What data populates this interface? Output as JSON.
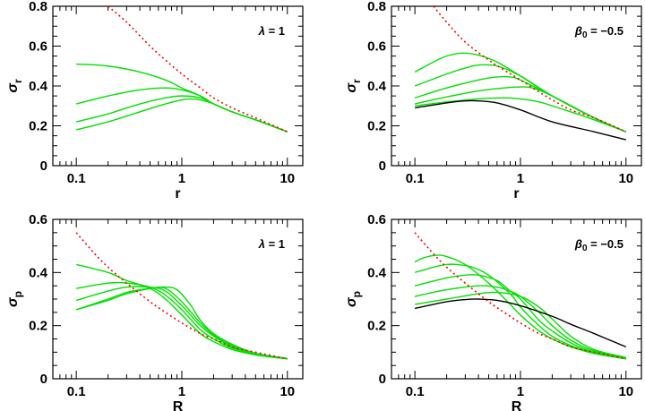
{
  "colors": {
    "green": "#00e000",
    "black": "#000000",
    "red": "#ff0000"
  },
  "chart_data": [
    {
      "type": "line",
      "xscale": "log",
      "xlim": [
        0.06,
        14
      ],
      "ylim": [
        0,
        0.8
      ],
      "xticks": [
        0.1,
        1,
        10
      ],
      "xtick_labels": [
        "0.1",
        "1",
        "10"
      ],
      "yticks": [
        0,
        0.2,
        0.4,
        0.6,
        0.8
      ],
      "ytick_labels": [
        "0",
        "0.2",
        "0.4",
        "0.6",
        "0.8"
      ],
      "xlabel": "r",
      "ylabel_sym": "σ",
      "ylabel_sub": "r",
      "annotation": {
        "sym": "λ",
        "text": " = 1"
      },
      "series": [
        {
          "color": "green",
          "style": "solid",
          "x": [
            0.1,
            0.2,
            0.4,
            0.7,
            1,
            1.5,
            2,
            3,
            5,
            10
          ],
          "y": [
            0.51,
            0.5,
            0.47,
            0.43,
            0.39,
            0.35,
            0.31,
            0.27,
            0.23,
            0.17
          ]
        },
        {
          "color": "green",
          "style": "solid",
          "x": [
            0.1,
            0.2,
            0.4,
            0.7,
            1,
            1.5,
            2,
            3,
            5,
            10
          ],
          "y": [
            0.31,
            0.35,
            0.38,
            0.39,
            0.38,
            0.35,
            0.31,
            0.27,
            0.23,
            0.17
          ]
        },
        {
          "color": "green",
          "style": "solid",
          "x": [
            0.1,
            0.2,
            0.4,
            0.7,
            1,
            1.5,
            2,
            3,
            5,
            10
          ],
          "y": [
            0.22,
            0.26,
            0.31,
            0.34,
            0.35,
            0.34,
            0.31,
            0.27,
            0.23,
            0.17
          ]
        },
        {
          "color": "green",
          "style": "solid",
          "x": [
            0.1,
            0.2,
            0.4,
            0.7,
            1,
            1.2,
            1.5,
            2,
            3,
            5,
            10
          ],
          "y": [
            0.18,
            0.22,
            0.27,
            0.31,
            0.33,
            0.335,
            0.33,
            0.31,
            0.27,
            0.23,
            0.17
          ]
        },
        {
          "color": "red",
          "style": "dotted",
          "x": [
            0.2,
            0.3,
            0.5,
            0.7,
            1,
            1.5,
            2,
            3,
            5,
            10
          ],
          "y": [
            0.8,
            0.72,
            0.6,
            0.53,
            0.46,
            0.39,
            0.34,
            0.29,
            0.24,
            0.17
          ]
        }
      ]
    },
    {
      "type": "line",
      "xscale": "log",
      "xlim": [
        0.06,
        14
      ],
      "ylim": [
        0,
        0.8
      ],
      "xticks": [
        0.1,
        1,
        10
      ],
      "xtick_labels": [
        "0.1",
        "1",
        "10"
      ],
      "yticks": [
        0,
        0.2,
        0.4,
        0.6,
        0.8
      ],
      "ytick_labels": [
        "0",
        "0.2",
        "0.4",
        "0.6",
        "0.8"
      ],
      "xlabel": "r",
      "ylabel_sym": "σ",
      "ylabel_sub": "r",
      "annotation": {
        "sym": "β",
        "sub": "0",
        "text": " = −0.5"
      },
      "series": [
        {
          "color": "green",
          "style": "solid",
          "x": [
            0.1,
            0.15,
            0.2,
            0.28,
            0.4,
            0.6,
            1,
            2,
            5,
            10
          ],
          "y": [
            0.47,
            0.52,
            0.55,
            0.565,
            0.555,
            0.52,
            0.45,
            0.35,
            0.24,
            0.17
          ]
        },
        {
          "color": "green",
          "style": "solid",
          "x": [
            0.1,
            0.2,
            0.3,
            0.4,
            0.6,
            1,
            2,
            5,
            10
          ],
          "y": [
            0.4,
            0.46,
            0.49,
            0.505,
            0.5,
            0.45,
            0.35,
            0.24,
            0.17
          ]
        },
        {
          "color": "green",
          "style": "solid",
          "x": [
            0.1,
            0.2,
            0.4,
            0.6,
            0.8,
            1,
            2,
            5,
            10
          ],
          "y": [
            0.34,
            0.39,
            0.43,
            0.445,
            0.445,
            0.43,
            0.35,
            0.24,
            0.17
          ]
        },
        {
          "color": "green",
          "style": "solid",
          "x": [
            0.1,
            0.2,
            0.4,
            0.7,
            1,
            1.3,
            2,
            5,
            10
          ],
          "y": [
            0.31,
            0.345,
            0.375,
            0.39,
            0.395,
            0.39,
            0.35,
            0.24,
            0.17
          ]
        },
        {
          "color": "green",
          "style": "solid",
          "x": [
            0.1,
            0.2,
            0.4,
            0.7,
            1,
            1.5,
            2,
            3,
            5,
            10
          ],
          "y": [
            0.3,
            0.32,
            0.335,
            0.34,
            0.335,
            0.32,
            0.3,
            0.27,
            0.23,
            0.17
          ]
        },
        {
          "color": "black",
          "style": "solid",
          "x": [
            0.1,
            0.2,
            0.3,
            0.4,
            0.6,
            1,
            2,
            5,
            10
          ],
          "y": [
            0.29,
            0.315,
            0.325,
            0.325,
            0.315,
            0.28,
            0.22,
            0.17,
            0.13
          ]
        },
        {
          "color": "red",
          "style": "dotted",
          "x": [
            0.15,
            0.2,
            0.3,
            0.5,
            0.7,
            1,
            1.5,
            2,
            3,
            5,
            10
          ],
          "y": [
            0.8,
            0.72,
            0.62,
            0.53,
            0.48,
            0.43,
            0.37,
            0.33,
            0.28,
            0.24,
            0.17
          ]
        }
      ]
    },
    {
      "type": "line",
      "xscale": "log",
      "xlim": [
        0.06,
        14
      ],
      "ylim": [
        0,
        0.6
      ],
      "xticks": [
        0.1,
        1,
        10
      ],
      "xtick_labels": [
        "0.1",
        "1",
        "10"
      ],
      "yticks": [
        0,
        0.2,
        0.4,
        0.6
      ],
      "ytick_labels": [
        "0",
        "0.2",
        "0.4",
        "0.6"
      ],
      "xlabel": "R",
      "ylabel_sym": "σ",
      "ylabel_sub": "p",
      "annotation": {
        "sym": "λ",
        "text": " = 1"
      },
      "series": [
        {
          "color": "green",
          "style": "solid",
          "x": [
            0.1,
            0.2,
            0.3,
            0.5,
            0.7,
            1,
            1.5,
            2,
            3,
            5,
            10
          ],
          "y": [
            0.43,
            0.4,
            0.37,
            0.34,
            0.3,
            0.24,
            0.17,
            0.14,
            0.11,
            0.09,
            0.075
          ]
        },
        {
          "color": "green",
          "style": "solid",
          "x": [
            0.1,
            0.2,
            0.3,
            0.5,
            0.7,
            1,
            1.5,
            2,
            3,
            5,
            10
          ],
          "y": [
            0.34,
            0.36,
            0.36,
            0.345,
            0.315,
            0.26,
            0.185,
            0.15,
            0.115,
            0.09,
            0.075
          ]
        },
        {
          "color": "green",
          "style": "solid",
          "x": [
            0.1,
            0.2,
            0.3,
            0.5,
            0.7,
            1,
            1.5,
            2,
            3,
            5,
            10
          ],
          "y": [
            0.295,
            0.33,
            0.345,
            0.345,
            0.33,
            0.275,
            0.2,
            0.16,
            0.12,
            0.092,
            0.075
          ]
        },
        {
          "color": "green",
          "style": "solid",
          "x": [
            0.1,
            0.2,
            0.3,
            0.5,
            0.7,
            1,
            1.5,
            2,
            3,
            5,
            10
          ],
          "y": [
            0.26,
            0.3,
            0.325,
            0.34,
            0.34,
            0.29,
            0.21,
            0.165,
            0.125,
            0.094,
            0.076
          ]
        },
        {
          "color": "green",
          "style": "solid",
          "x": [
            0.1,
            0.2,
            0.3,
            0.5,
            0.7,
            0.9,
            1.2,
            1.5,
            2,
            3,
            5,
            10
          ],
          "y": [
            0.26,
            0.295,
            0.32,
            0.34,
            0.345,
            0.335,
            0.28,
            0.22,
            0.17,
            0.13,
            0.096,
            0.077
          ]
        },
        {
          "color": "red",
          "style": "dotted",
          "x": [
            0.1,
            0.15,
            0.2,
            0.3,
            0.5,
            0.7,
            1,
            1.5,
            2,
            3,
            5,
            10
          ],
          "y": [
            0.55,
            0.47,
            0.42,
            0.36,
            0.29,
            0.25,
            0.21,
            0.17,
            0.15,
            0.12,
            0.1,
            0.075
          ]
        }
      ]
    },
    {
      "type": "line",
      "xscale": "log",
      "xlim": [
        0.06,
        14
      ],
      "ylim": [
        0,
        0.6
      ],
      "xticks": [
        0.1,
        1,
        10
      ],
      "xtick_labels": [
        "0.1",
        "1",
        "10"
      ],
      "yticks": [
        0,
        0.2,
        0.4,
        0.6
      ],
      "ytick_labels": [
        "0",
        "0.2",
        "0.4",
        "0.6"
      ],
      "xlabel": "R",
      "ylabel_sym": "σ",
      "ylabel_sub": "p",
      "annotation": {
        "sym": "β",
        "sub": "0",
        "text": " = −0.5"
      },
      "series": [
        {
          "color": "green",
          "style": "solid",
          "x": [
            0.1,
            0.12,
            0.16,
            0.2,
            0.3,
            0.5,
            0.8,
            1,
            1.5,
            2,
            3,
            5,
            10
          ],
          "y": [
            0.44,
            0.455,
            0.465,
            0.46,
            0.43,
            0.36,
            0.28,
            0.24,
            0.18,
            0.15,
            0.12,
            0.095,
            0.075
          ]
        },
        {
          "color": "green",
          "style": "solid",
          "x": [
            0.1,
            0.15,
            0.2,
            0.25,
            0.35,
            0.5,
            0.8,
            1,
            1.5,
            2,
            3,
            5,
            10
          ],
          "y": [
            0.4,
            0.42,
            0.43,
            0.43,
            0.42,
            0.39,
            0.32,
            0.27,
            0.2,
            0.16,
            0.125,
            0.097,
            0.076
          ]
        },
        {
          "color": "green",
          "style": "solid",
          "x": [
            0.1,
            0.2,
            0.3,
            0.4,
            0.6,
            0.8,
            1,
            1.5,
            2,
            3,
            5,
            10
          ],
          "y": [
            0.35,
            0.38,
            0.39,
            0.39,
            0.37,
            0.33,
            0.3,
            0.22,
            0.18,
            0.135,
            0.1,
            0.077
          ]
        },
        {
          "color": "green",
          "style": "solid",
          "x": [
            0.1,
            0.2,
            0.4,
            0.6,
            0.8,
            1,
            1.5,
            2,
            3,
            5,
            10
          ],
          "y": [
            0.31,
            0.335,
            0.35,
            0.345,
            0.33,
            0.31,
            0.25,
            0.2,
            0.145,
            0.105,
            0.078
          ]
        },
        {
          "color": "green",
          "style": "solid",
          "x": [
            0.1,
            0.2,
            0.4,
            0.6,
            1,
            1.5,
            2,
            3,
            5,
            10
          ],
          "y": [
            0.28,
            0.3,
            0.32,
            0.325,
            0.31,
            0.27,
            0.225,
            0.16,
            0.11,
            0.08
          ]
        },
        {
          "color": "black",
          "style": "solid",
          "x": [
            0.1,
            0.2,
            0.3,
            0.4,
            0.6,
            1,
            2,
            3,
            5,
            10
          ],
          "y": [
            0.265,
            0.29,
            0.298,
            0.3,
            0.295,
            0.275,
            0.235,
            0.205,
            0.17,
            0.12
          ]
        },
        {
          "color": "red",
          "style": "dotted",
          "x": [
            0.1,
            0.15,
            0.2,
            0.3,
            0.5,
            0.7,
            1,
            1.5,
            2,
            3,
            5,
            10
          ],
          "y": [
            0.55,
            0.47,
            0.42,
            0.36,
            0.29,
            0.25,
            0.21,
            0.17,
            0.15,
            0.12,
            0.1,
            0.075
          ]
        }
      ]
    }
  ]
}
